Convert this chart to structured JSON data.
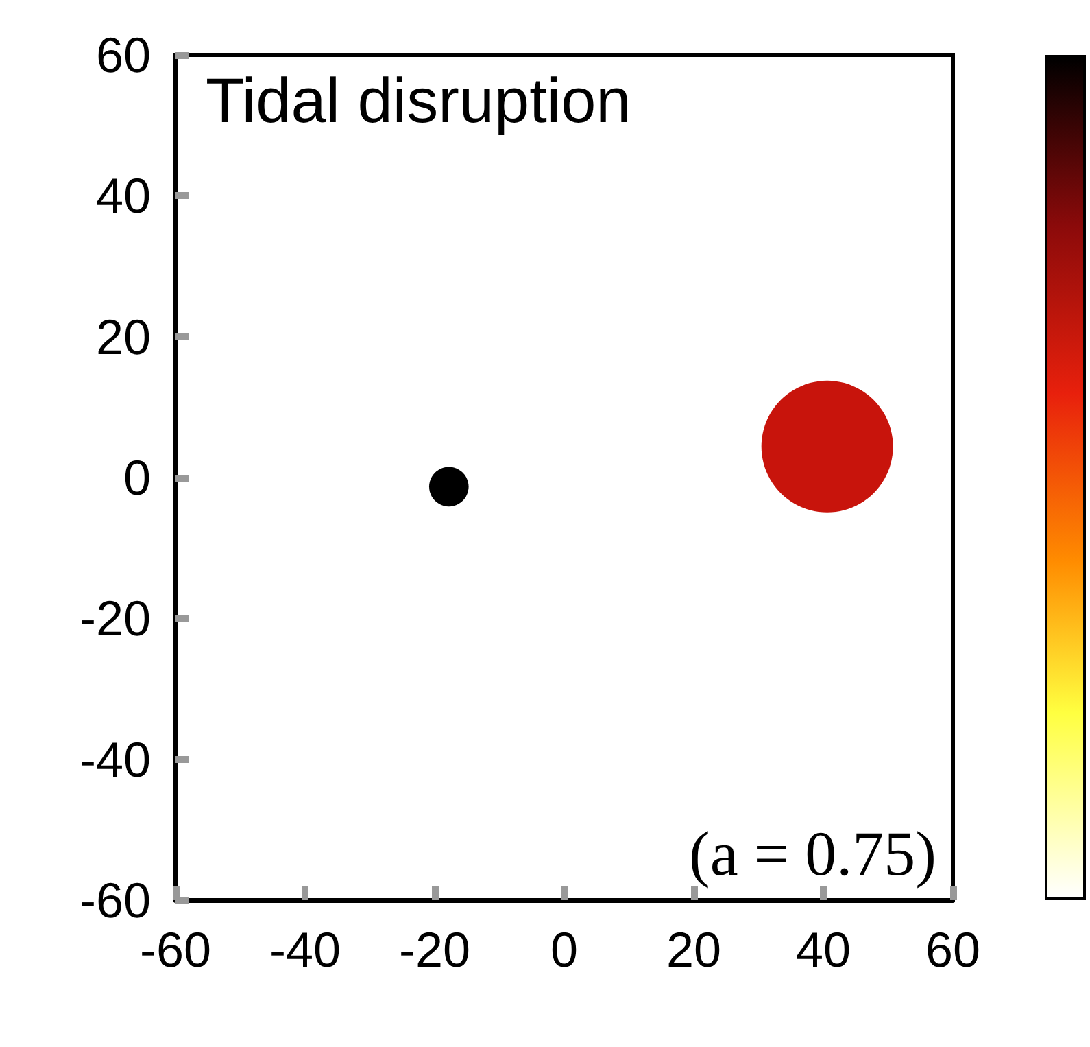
{
  "chart_data": {
    "type": "bubble",
    "title": "Tidal disruption",
    "annotations": [
      "(a = 0.75)"
    ],
    "series": [
      {
        "color": "#000000",
        "x": [
          -17.8
        ],
        "values": [
          -1.3
        ],
        "sizes": [
          0.09
        ]
      },
      {
        "color": "#c8140c",
        "x": [
          40.6
        ],
        "values": [
          4.4
        ],
        "sizes": [
          1
        ]
      }
    ],
    "xlim": [
      -60,
      60
    ],
    "xticks": [
      -60,
      -40,
      -20,
      0,
      20,
      40,
      60
    ],
    "ylim": [
      -60,
      60
    ],
    "yticks": [
      -60,
      -40,
      -20,
      0,
      20,
      40,
      60
    ],
    "grid": false,
    "marker": "circle"
  }
}
